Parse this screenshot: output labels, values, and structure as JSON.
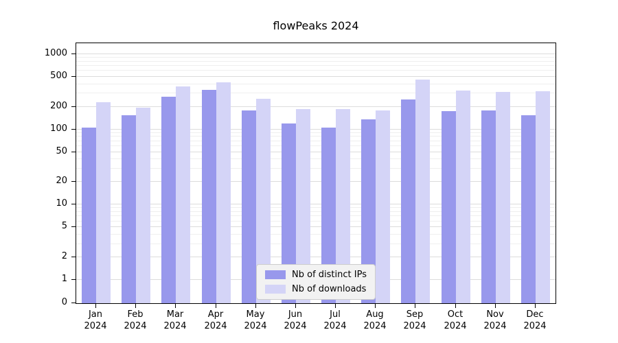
{
  "title": "flowPeaks 2024",
  "chart_data": {
    "type": "bar",
    "title": "flowPeaks 2024",
    "y_scale": "symlog",
    "grid": true,
    "legend_position": "lower center",
    "ylim": [
      0,
      1400
    ],
    "y_ticks": [
      0,
      1,
      2,
      5,
      10,
      20,
      50,
      100,
      200,
      500,
      1000
    ],
    "y_minor_ticks": [
      3,
      4,
      6,
      7,
      8,
      9,
      30,
      40,
      60,
      70,
      80,
      90,
      300,
      400,
      600,
      700,
      800,
      900
    ],
    "months": [
      "Jan",
      "Feb",
      "Mar",
      "Apr",
      "May",
      "Jun",
      "Jul",
      "Aug",
      "Sep",
      "Oct",
      "Nov",
      "Dec"
    ],
    "x_tick_year": "2024",
    "categories": [
      "Jan 2024",
      "Feb 2024",
      "Mar 2024",
      "Apr 2024",
      "May 2024",
      "Jun 2024",
      "Jul 2024",
      "Aug 2024",
      "Sep 2024",
      "Oct 2024",
      "Nov 2024",
      "Dec 2024"
    ],
    "series": [
      {
        "name": "Nb of distinct IPs",
        "color": "#9898ec",
        "values": [
          105,
          155,
          270,
          335,
          180,
          120,
          105,
          135,
          250,
          175,
          180,
          155
        ]
      },
      {
        "name": "Nb of downloads",
        "color": "#d4d4f7",
        "values": [
          230,
          195,
          370,
          420,
          255,
          185,
          185,
          180,
          455,
          330,
          315,
          320
        ]
      }
    ]
  }
}
